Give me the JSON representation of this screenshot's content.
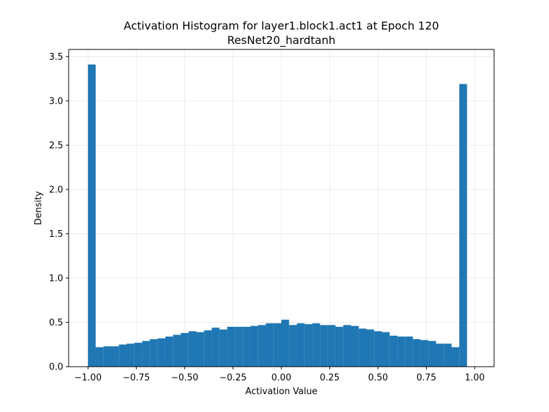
{
  "chart_data": {
    "type": "bar",
    "title": "Activation Histogram for layer1.block1.act1 at Epoch 120",
    "subtitle": "ResNet20_hardtanh",
    "xlabel": "Activation Value",
    "ylabel": "Density",
    "xlim": [
      -1.1,
      1.1
    ],
    "ylim": [
      0,
      3.58
    ],
    "xticks": [
      -1.0,
      -0.75,
      -0.5,
      -0.25,
      0.0,
      0.25,
      0.5,
      0.75,
      1.0
    ],
    "xtick_labels": [
      "−1.00",
      "−0.75",
      "−0.50",
      "−0.25",
      "0.00",
      "0.25",
      "0.50",
      "0.75",
      "1.00"
    ],
    "yticks": [
      0.0,
      0.5,
      1.0,
      1.5,
      2.0,
      2.5,
      3.0,
      3.5
    ],
    "ytick_labels": [
      "0.0",
      "0.5",
      "1.0",
      "1.5",
      "2.0",
      "2.5",
      "3.0",
      "3.5"
    ],
    "grid": true,
    "bar_color": "#1f77b4",
    "bin_edges_start": -1.0,
    "bin_width": 0.04,
    "values": [
      3.41,
      0.22,
      0.23,
      0.23,
      0.25,
      0.26,
      0.27,
      0.29,
      0.31,
      0.32,
      0.34,
      0.36,
      0.38,
      0.4,
      0.39,
      0.41,
      0.44,
      0.42,
      0.45,
      0.45,
      0.45,
      0.46,
      0.47,
      0.49,
      0.49,
      0.53,
      0.47,
      0.49,
      0.48,
      0.49,
      0.47,
      0.47,
      0.45,
      0.47,
      0.46,
      0.43,
      0.42,
      0.4,
      0.39,
      0.35,
      0.34,
      0.34,
      0.31,
      0.3,
      0.29,
      0.26,
      0.26,
      0.22,
      3.19
    ]
  }
}
